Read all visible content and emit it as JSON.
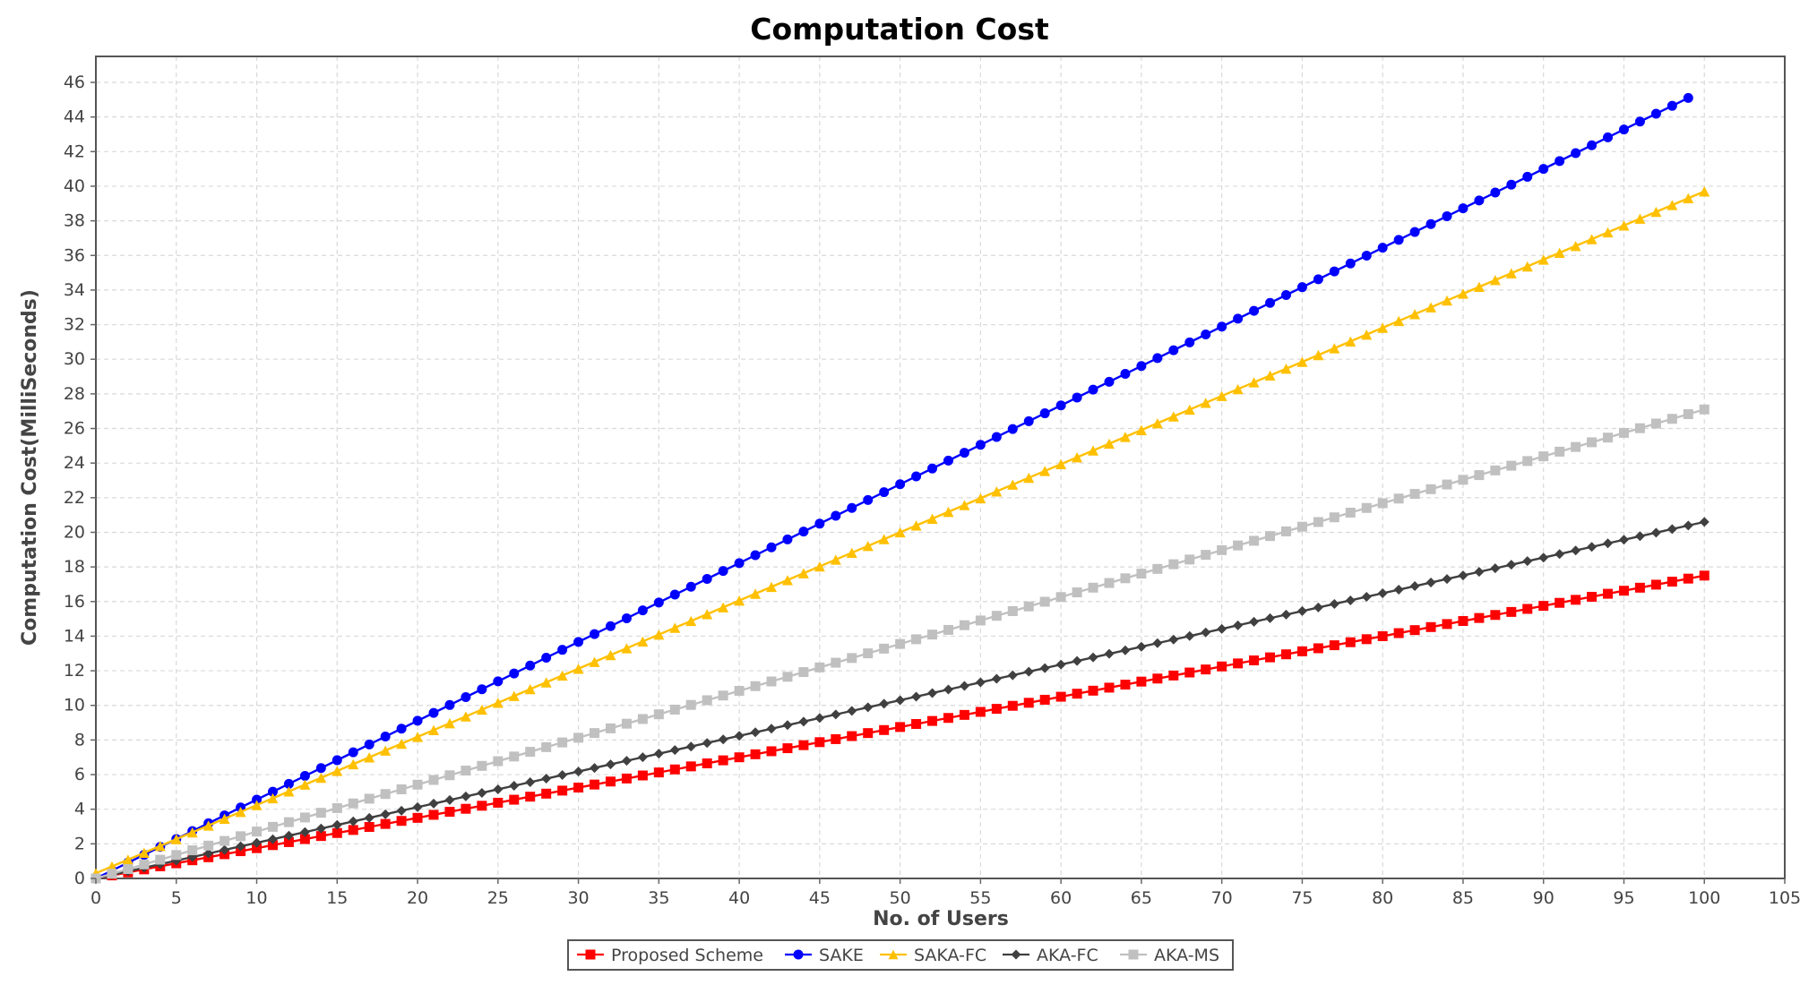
{
  "chart_data": {
    "type": "line",
    "title": "Computation Cost",
    "xlabel": "No. of Users",
    "ylabel": "Computation Cost(MilliSeconds)",
    "xlim": [
      0,
      105
    ],
    "ylim": [
      0,
      47.5
    ],
    "x_ticks": [
      0,
      5,
      10,
      15,
      20,
      25,
      30,
      35,
      40,
      45,
      50,
      55,
      60,
      65,
      70,
      75,
      80,
      85,
      90,
      95,
      100,
      105
    ],
    "y_ticks": [
      0,
      2,
      4,
      6,
      8,
      10,
      12,
      14,
      16,
      18,
      20,
      22,
      24,
      26,
      28,
      30,
      32,
      34,
      36,
      38,
      40,
      42,
      44,
      46
    ],
    "grid": true,
    "legend_position": "bottom-center",
    "series": [
      {
        "name": "Proposed Scheme",
        "color": "#ff0000",
        "marker": "square",
        "x_start": 0,
        "x_end": 100,
        "x_step": 1,
        "y_start": 0,
        "y_end": 17.5
      },
      {
        "name": "SAKE",
        "color": "#0000ff",
        "marker": "circle",
        "x_start": 0,
        "x_end": 99,
        "x_step": 1,
        "y_start": 0,
        "y_end": 45.1
      },
      {
        "name": "SAKA-FC",
        "color": "#ffc000",
        "marker": "triangle",
        "x_start": 0,
        "x_end": 100,
        "x_step": 1,
        "y_start": 0.3,
        "y_end": 39.7
      },
      {
        "name": "AKA-FC",
        "color": "#404040",
        "marker": "diamond",
        "x_start": 0,
        "x_end": 100,
        "x_step": 1,
        "y_start": 0,
        "y_end": 20.6
      },
      {
        "name": "AKA-MS",
        "color": "#c0c0c0",
        "marker": "square",
        "x_start": 0,
        "x_end": 100,
        "x_step": 1,
        "y_start": 0,
        "y_end": 27.1
      }
    ]
  }
}
